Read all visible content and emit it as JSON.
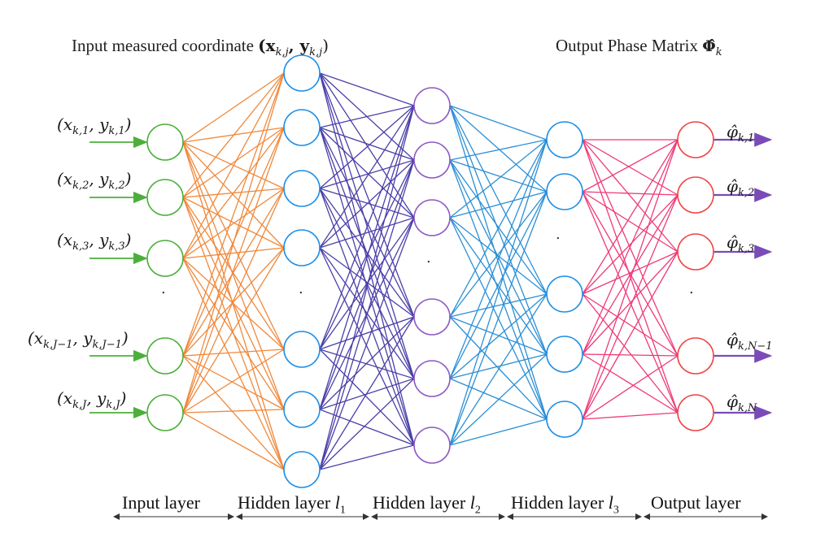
{
  "titles": {
    "input_prefix": "Input measured coordinate",
    "input_math": "(x",
    "input_math_sub1": "k,j",
    "input_math_mid": ", y",
    "input_math_sub2": "k,j",
    "input_math_end": ")",
    "output_prefix": "Output Phase Matrix",
    "output_math": "Φ̂",
    "output_math_sub": "k"
  },
  "inputs": [
    {
      "x_sub": "k,1",
      "y_sub": "k,1",
      "text": "(x_{k,1}, y_{k,1})"
    },
    {
      "x_sub": "k,2",
      "y_sub": "k,2",
      "text": "(x_{k,2}, y_{k,2})"
    },
    {
      "x_sub": "k,3",
      "y_sub": "k,3",
      "text": "(x_{k,3}, y_{k,3})"
    },
    {
      "x_sub": "k,J−1",
      "y_sub": "k,J−1",
      "text": "(x_{k,J-1}, y_{k,J-1})"
    },
    {
      "x_sub": "k,J",
      "y_sub": "k,J",
      "text": "(x_{k,J}, y_{k,J})"
    }
  ],
  "outputs": [
    {
      "sub": "k,1"
    },
    {
      "sub": "k,2"
    },
    {
      "sub": "k,3"
    },
    {
      "sub": "k,N−1"
    },
    {
      "sub": "k,N"
    }
  ],
  "layer_labels": {
    "input": "Input layer",
    "hidden1": "Hidden layer",
    "hidden1_sub": "1",
    "hidden2": "Hidden layer",
    "hidden2_sub": "2",
    "hidden3": "Hidden layer",
    "hidden3_sub": "3",
    "output": "Output layer",
    "hidden_var": "l"
  },
  "colors": {
    "input_nodes": "#4caf3c",
    "hidden1_nodes": "#1f8fe6",
    "hidden2_nodes": "#8e5bc4",
    "hidden3_nodes": "#1f8fe6",
    "output_nodes": "#f04545",
    "edges_in_h1": "#f0883a",
    "edges_h1_h2": "#4a3fa8",
    "edges_h2_h3": "#2a8fd6",
    "edges_h3_out": "#ee3a7a",
    "input_arrows": "#4caf3c",
    "output_arrows": "#7a4bb8"
  },
  "ellipsis": "."
}
